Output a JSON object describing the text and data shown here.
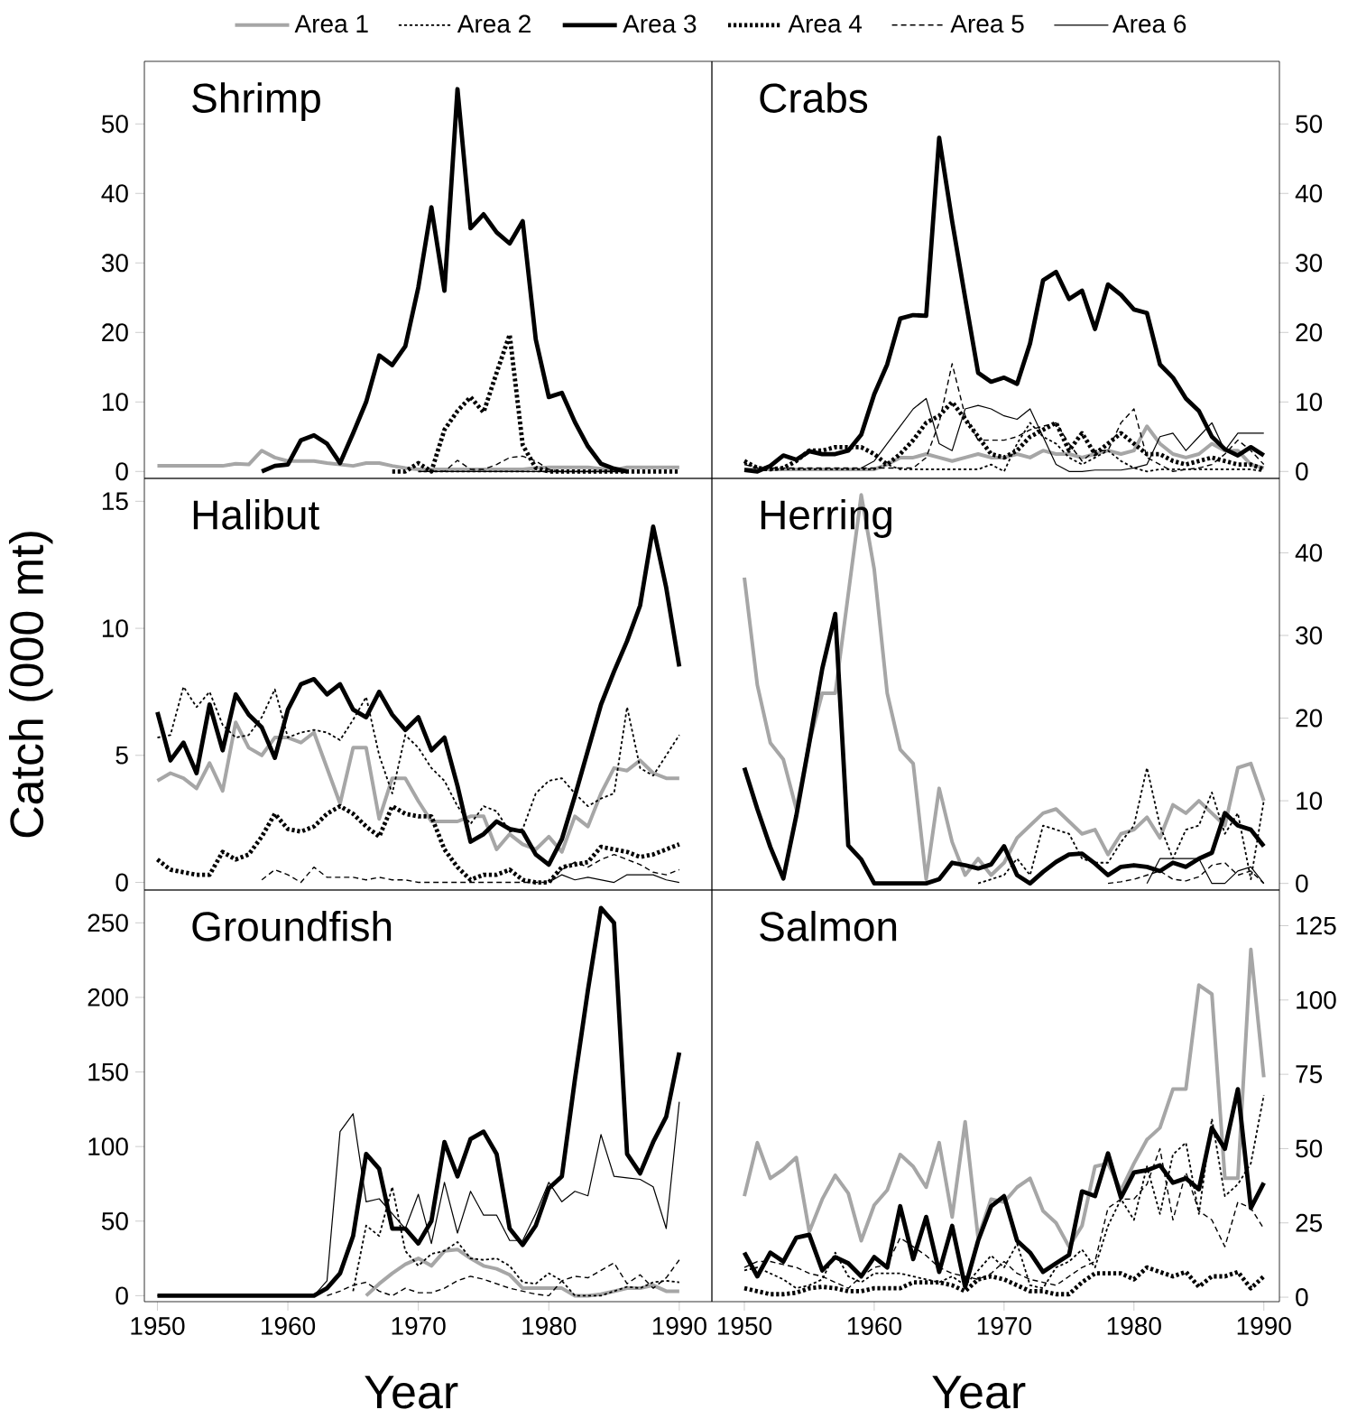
{
  "chart_data": [
    {
      "type": "line",
      "title": "Shrimp",
      "x": [
        1950,
        1951,
        1952,
        1953,
        1954,
        1955,
        1956,
        1957,
        1958,
        1959,
        1960,
        1961,
        1962,
        1963,
        1964,
        1965,
        1966,
        1967,
        1968,
        1969,
        1970,
        1971,
        1972,
        1973,
        1974,
        1975,
        1976,
        1977,
        1978,
        1979,
        1980,
        1981,
        1982,
        1983,
        1984,
        1985,
        1986,
        1987,
        1988,
        1989,
        1990
      ],
      "xlim": [
        1949,
        1992.5
      ],
      "ylim": [
        -1,
        59
      ],
      "yticks": [
        0,
        10,
        20,
        30,
        40,
        50
      ],
      "tick_labels": "y",
      "legend": "top",
      "series": [
        {
          "name": "Area 1",
          "color": "#a6a6a6",
          "line_style": "solid",
          "values": [
            0.8,
            0.8,
            0.8,
            0.8,
            0.8,
            0.8,
            1.1,
            1,
            3,
            2,
            1.5,
            1.5,
            1.5,
            1.2,
            1,
            0.8,
            1.2,
            1.2,
            0.8,
            0.5,
            0.3,
            0.3,
            0.3,
            0.3,
            0.3,
            0.3,
            0.3,
            0.3,
            0.3,
            0.5,
            0.6,
            0.6,
            0.6,
            0.6,
            0.4,
            0.2,
            0.6,
            0.6,
            0.6,
            0.6,
            0.6
          ]
        },
        {
          "name": "Area 2",
          "color": "#000000",
          "line_style": "dotted",
          "values": [
            null,
            null,
            null,
            null,
            null,
            null,
            null,
            null,
            null,
            null,
            null,
            null,
            null,
            null,
            null,
            null,
            null,
            null,
            null,
            null,
            0,
            0,
            0,
            0,
            0,
            0,
            0,
            0,
            0,
            0,
            0,
            0,
            0,
            0,
            0,
            0,
            0,
            null,
            null,
            null,
            null
          ]
        },
        {
          "name": "Area 3",
          "color": "#000000",
          "line_style": "solid",
          "values": [
            null,
            null,
            null,
            null,
            null,
            null,
            null,
            null,
            0,
            0.8,
            1,
            4.5,
            5.2,
            4,
            1.2,
            5.5,
            10,
            16.7,
            15.3,
            18,
            26.5,
            38,
            26,
            55,
            35,
            37,
            34.4,
            32.8,
            36,
            19,
            10.7,
            11.3,
            7.1,
            3.6,
            1.1,
            0.4,
            0,
            null,
            null,
            null,
            null
          ]
        },
        {
          "name": "Area 4",
          "color": "#000000",
          "line_style": "dotted",
          "values": [
            null,
            null,
            null,
            null,
            null,
            null,
            null,
            null,
            null,
            null,
            null,
            null,
            null,
            null,
            null,
            null,
            null,
            null,
            0,
            0,
            1.2,
            0,
            6,
            8.7,
            10.7,
            8.5,
            14.2,
            19.7,
            3.8,
            0.5,
            0,
            0,
            0,
            0,
            0,
            0,
            0,
            0,
            0,
            0,
            0
          ]
        },
        {
          "name": "Area 5",
          "color": "#000000",
          "line_style": "dashed",
          "values": [
            null,
            null,
            null,
            null,
            null,
            null,
            null,
            null,
            null,
            null,
            null,
            null,
            null,
            null,
            null,
            null,
            null,
            null,
            null,
            null,
            null,
            0,
            0,
            1.6,
            0.3,
            0.3,
            1,
            2,
            2.2,
            1.5,
            0.3,
            0,
            null,
            null,
            null,
            null,
            null,
            null,
            null,
            null,
            null
          ]
        },
        {
          "name": "Area 6",
          "color": "#000000",
          "line_style": "solid",
          "values": [
            null,
            null,
            null,
            null,
            null,
            null,
            null,
            null,
            null,
            null,
            null,
            null,
            null,
            null,
            null,
            null,
            null,
            null,
            null,
            null,
            0,
            0,
            0,
            0,
            0,
            0,
            0,
            0,
            0,
            0,
            0,
            0,
            0,
            0,
            0,
            0,
            0,
            null,
            null,
            null,
            null
          ]
        }
      ]
    },
    {
      "type": "line",
      "title": "Crabs",
      "x": [
        1950,
        1951,
        1952,
        1953,
        1954,
        1955,
        1956,
        1957,
        1958,
        1959,
        1960,
        1961,
        1962,
        1963,
        1964,
        1965,
        1966,
        1967,
        1968,
        1969,
        1970,
        1971,
        1972,
        1973,
        1974,
        1975,
        1976,
        1977,
        1978,
        1979,
        1980,
        1981,
        1982,
        1983,
        1984,
        1985,
        1986,
        1987,
        1988,
        1989,
        1990
      ],
      "xlim": [
        1947.5,
        1991.2
      ],
      "ylim": [
        -1,
        59
      ],
      "yticks": [
        0,
        10,
        20,
        30,
        40,
        50
      ],
      "tick_labels": "y",
      "series": [
        {
          "color": "#a6a6a6",
          "line_style": "solid",
          "values": [
            0.3,
            0.3,
            0.3,
            0.3,
            0.3,
            0.3,
            0.3,
            0.3,
            0.3,
            0.3,
            0.3,
            1,
            2,
            2,
            2.5,
            2,
            1.5,
            2,
            2.5,
            2,
            2,
            2.5,
            2,
            3,
            2.5,
            2.5,
            2,
            2.5,
            3,
            2.5,
            3,
            6.5,
            4,
            2.5,
            2,
            2.5,
            4,
            3,
            3,
            1,
            0.5
          ]
        },
        {
          "color": "#000000",
          "line_style": "dotted",
          "values": [
            1.2,
            0.5,
            0.3,
            0.3,
            0.3,
            0.3,
            0.3,
            0.3,
            0.3,
            0.3,
            0.3,
            1,
            0.3,
            0.3,
            0.3,
            0.3,
            0.3,
            0.3,
            0.3,
            1,
            0,
            4,
            7,
            5,
            4,
            2,
            1,
            2,
            3,
            1.5,
            0.5,
            0,
            0.3,
            0.3,
            0.3,
            0.3,
            0.3,
            0.3,
            0.3,
            0.3,
            0
          ]
        },
        {
          "color": "#000000",
          "line_style": "solid",
          "values": [
            0.2,
            0,
            0.8,
            2.3,
            1.7,
            2.9,
            2.5,
            2.5,
            3,
            5.3,
            11.1,
            15.4,
            22,
            22.5,
            22.4,
            48,
            36,
            25,
            14.2,
            12.9,
            13.5,
            12.6,
            18.4,
            27.5,
            28.7,
            24.8,
            26,
            20.5,
            26.9,
            25.4,
            23.3,
            22.8,
            15.4,
            13.5,
            10.5,
            8.7,
            5,
            3.2,
            2.3,
            3.5,
            2.3
          ]
        },
        {
          "color": "#000000",
          "line_style": "dotted",
          "values": [
            1.5,
            0.5,
            0.3,
            0.5,
            1.5,
            3,
            3,
            3.5,
            3.5,
            3.5,
            2.5,
            1,
            2.5,
            4.5,
            7,
            8,
            10,
            7.5,
            5,
            2.5,
            2,
            3,
            5,
            6,
            7,
            3,
            5.5,
            2.5,
            4,
            5.5,
            4,
            2.5,
            2.5,
            1.5,
            1,
            1.5,
            2,
            1.5,
            1,
            1,
            0.3
          ]
        },
        {
          "color": "#000000",
          "line_style": "dashed",
          "values": [
            1,
            0.5,
            0.5,
            0.5,
            0.5,
            0.5,
            0.5,
            0.5,
            0.5,
            0.5,
            0.5,
            0.5,
            0.5,
            0.5,
            2,
            7,
            15.5,
            8,
            4.5,
            4.5,
            4.5,
            5,
            6,
            6.5,
            7,
            4,
            1.5,
            3,
            3,
            7,
            9,
            2,
            1,
            0,
            0.3,
            0.5,
            1,
            2.5,
            4.5,
            3,
            1
          ]
        },
        {
          "color": "#000000",
          "line_style": "solid",
          "values": [
            null,
            null,
            null,
            null,
            null,
            null,
            null,
            null,
            null,
            0.5,
            1.5,
            4,
            6.5,
            9,
            10.5,
            4,
            3,
            9,
            9.5,
            9,
            8,
            7.5,
            9,
            5,
            1,
            0,
            0,
            0.2,
            0.2,
            0.2,
            0.5,
            1,
            5,
            5.5,
            3,
            5,
            7,
            3,
            5.5,
            5.5,
            5.5
          ]
        }
      ]
    },
    {
      "type": "line",
      "title": "Halibut",
      "ylabel": "Catch (000 mt)",
      "x": [
        1950,
        1951,
        1952,
        1953,
        1954,
        1955,
        1956,
        1957,
        1958,
        1959,
        1960,
        1961,
        1962,
        1963,
        1964,
        1965,
        1966,
        1967,
        1968,
        1969,
        1970,
        1971,
        1972,
        1973,
        1974,
        1975,
        1976,
        1977,
        1978,
        1979,
        1980,
        1981,
        1982,
        1983,
        1984,
        1985,
        1986,
        1987,
        1988,
        1989,
        1990
      ],
      "xlim": [
        1949,
        1992.5
      ],
      "ylim": [
        -0.3,
        15.9
      ],
      "yticks": [
        0,
        5,
        10,
        15
      ],
      "tick_labels": "y",
      "series": [
        {
          "color": "#a6a6a6",
          "line_style": "solid",
          "values": [
            4,
            4.3,
            4.1,
            3.7,
            4.7,
            3.6,
            6.3,
            5.3,
            5,
            5.7,
            5.7,
            5.5,
            5.9,
            4.5,
            3.1,
            5.3,
            5.3,
            2.5,
            4.1,
            4.1,
            3.2,
            2.4,
            2.4,
            2.4,
            2.6,
            2.6,
            1.3,
            1.9,
            1.5,
            1.3,
            1.8,
            1.2,
            2.6,
            2.2,
            3.5,
            4.5,
            4.4,
            4.8,
            4.3,
            4.1,
            4.1
          ]
        },
        {
          "color": "#000000",
          "line_style": "dotted",
          "values": [
            5.7,
            5.8,
            7.7,
            6.9,
            7.5,
            6.2,
            5.7,
            5.8,
            6.5,
            7.6,
            5.7,
            5.9,
            6,
            5.9,
            5.6,
            6.4,
            7.3,
            5,
            3.5,
            5.8,
            5.3,
            4.5,
            4,
            3,
            2.3,
            3,
            2.8,
            2,
            2.1,
            3.5,
            4,
            4.1,
            3.5,
            3,
            3.3,
            3.5,
            6.9,
            4.5,
            4.2,
            5,
            5.8
          ]
        },
        {
          "color": "#000000",
          "line_style": "solid",
          "values": [
            6.7,
            4.8,
            5.5,
            4.3,
            7,
            5.2,
            7.4,
            6.6,
            6.1,
            4.9,
            6.8,
            7.8,
            8,
            7.4,
            7.8,
            6.8,
            6.5,
            7.5,
            6.6,
            6,
            6.5,
            5.2,
            5.7,
            3.8,
            1.6,
            1.9,
            2.4,
            2.1,
            2,
            1.1,
            0.7,
            1.7,
            3.4,
            5.2,
            7,
            8.3,
            9.5,
            10.9,
            14,
            11.6,
            8.5
          ]
        },
        {
          "color": "#000000",
          "line_style": "dotted",
          "values": [
            0.9,
            0.5,
            0.4,
            0.3,
            0.3,
            1.2,
            0.9,
            1.1,
            1.8,
            2.7,
            2.1,
            2,
            2.2,
            2.7,
            3,
            2.7,
            2.2,
            1.8,
            3,
            2.7,
            2.6,
            2.6,
            1.3,
            0.6,
            0.1,
            0.3,
            0.3,
            0.5,
            0.1,
            0,
            0,
            0.6,
            0.7,
            0.8,
            1.4,
            1.3,
            1.2,
            1,
            1.1,
            1.3,
            1.5
          ]
        },
        {
          "color": "#000000",
          "line_style": "dashed",
          "values": [
            null,
            null,
            null,
            null,
            null,
            null,
            null,
            null,
            0.1,
            0.5,
            0.3,
            0,
            0.6,
            0.2,
            0.2,
            0.2,
            0.1,
            0.2,
            0.1,
            0.1,
            0,
            0,
            0,
            0,
            0,
            0,
            0,
            0,
            0,
            0,
            0,
            0.5,
            0.8,
            0.6,
            0.9,
            1.1,
            0.9,
            0.7,
            0.4,
            0.3,
            0.5
          ]
        },
        {
          "color": "#000000",
          "line_style": "solid",
          "values": [
            null,
            null,
            null,
            null,
            null,
            null,
            null,
            null,
            null,
            null,
            null,
            null,
            null,
            null,
            null,
            null,
            null,
            null,
            null,
            null,
            null,
            null,
            null,
            null,
            null,
            null,
            null,
            null,
            null,
            null,
            0,
            0.3,
            0.1,
            0.2,
            0.1,
            0,
            0.3,
            0.3,
            0.3,
            0.1,
            0
          ]
        }
      ]
    },
    {
      "type": "line",
      "title": "Herring",
      "x": [
        1950,
        1951,
        1952,
        1953,
        1954,
        1955,
        1956,
        1957,
        1958,
        1959,
        1960,
        1961,
        1962,
        1963,
        1964,
        1965,
        1966,
        1967,
        1968,
        1969,
        1970,
        1971,
        1972,
        1973,
        1974,
        1975,
        1976,
        1977,
        1978,
        1979,
        1980,
        1981,
        1982,
        1983,
        1984,
        1985,
        1986,
        1987,
        1988,
        1989,
        1990
      ],
      "xlim": [
        1947.5,
        1991.2
      ],
      "ylim": [
        -0.8,
        49
      ],
      "yticks": [
        0,
        10,
        20,
        30,
        40
      ],
      "tick_labels": "y",
      "series": [
        {
          "color": "#a6a6a6",
          "line_style": "solid",
          "values": [
            37,
            24,
            17,
            15,
            9,
            17,
            23,
            23,
            35,
            47,
            38,
            23,
            16.2,
            14.5,
            0.5,
            11.5,
            5,
            1,
            3,
            1,
            2.5,
            5.5,
            7,
            8.5,
            9,
            7.5,
            6,
            6.5,
            3.5,
            6,
            6.5,
            8,
            5.5,
            9.5,
            8.5,
            10,
            8.5,
            7,
            14,
            14.5,
            10
          ]
        },
        {
          "color": "#000000",
          "line_style": "dotted",
          "values": [
            null,
            null,
            null,
            null,
            null,
            null,
            null,
            null,
            null,
            null,
            null,
            null,
            null,
            null,
            null,
            null,
            null,
            null,
            0,
            0.5,
            1,
            3,
            1,
            7,
            6.5,
            6,
            3,
            2.5,
            2.5,
            5,
            7,
            14,
            7,
            3,
            6.5,
            7,
            11,
            6,
            8.5,
            0.5,
            10
          ]
        },
        {
          "color": "#000000",
          "line_style": "solid",
          "values": [
            14,
            9,
            4.4,
            0.6,
            8.2,
            17,
            26,
            32.6,
            4.6,
            2.9,
            0,
            0,
            0,
            0,
            0,
            0.5,
            2.5,
            2.2,
            1.8,
            2.3,
            4.5,
            1,
            0,
            1.4,
            2.6,
            3.5,
            3.6,
            2.4,
            1,
            2,
            2.2,
            2,
            1.5,
            2.5,
            2,
            3,
            3.7,
            8.5,
            7,
            6.5,
            4.5
          ]
        },
        {
          "color": "#000000",
          "line_style": "dashed",
          "values": [
            null,
            null,
            null,
            null,
            null,
            null,
            null,
            null,
            null,
            null,
            null,
            null,
            null,
            null,
            null,
            null,
            null,
            null,
            null,
            null,
            null,
            null,
            null,
            null,
            null,
            null,
            null,
            null,
            0,
            0.2,
            0.5,
            1,
            1.5,
            0.5,
            0.3,
            0.8,
            2.2,
            2.5,
            1,
            1.5,
            0
          ]
        },
        {
          "color": "#000000",
          "line_style": "solid",
          "values": [
            null,
            null,
            null,
            null,
            null,
            null,
            null,
            null,
            null,
            null,
            null,
            null,
            null,
            null,
            null,
            null,
            null,
            null,
            null,
            null,
            null,
            null,
            null,
            null,
            null,
            null,
            null,
            null,
            null,
            null,
            null,
            0,
            3,
            3,
            3,
            3,
            0,
            0,
            1.5,
            2,
            0
          ]
        }
      ]
    },
    {
      "type": "line",
      "title": "Groundfish",
      "xlabel": "Year",
      "x": [
        1950,
        1951,
        1952,
        1953,
        1954,
        1955,
        1956,
        1957,
        1958,
        1959,
        1960,
        1961,
        1962,
        1963,
        1964,
        1965,
        1966,
        1967,
        1968,
        1969,
        1970,
        1971,
        1972,
        1973,
        1974,
        1975,
        1976,
        1977,
        1978,
        1979,
        1980,
        1981,
        1982,
        1983,
        1984,
        1985,
        1986,
        1987,
        1988,
        1989,
        1990
      ],
      "xlim": [
        1949,
        1992.5
      ],
      "xticks": [
        1950,
        1960,
        1970,
        1980,
        1990
      ],
      "ylim": [
        -4,
        272
      ],
      "yticks": [
        0,
        50,
        100,
        150,
        200,
        250
      ],
      "series": [
        {
          "color": "#a6a6a6",
          "line_style": "solid",
          "values": [
            null,
            null,
            null,
            null,
            null,
            null,
            null,
            null,
            null,
            null,
            null,
            null,
            null,
            null,
            null,
            null,
            0,
            8,
            15,
            21,
            25,
            20,
            30,
            31,
            25,
            20,
            18,
            14,
            5,
            5,
            5,
            5,
            0,
            0,
            1,
            3,
            5,
            5,
            7,
            3,
            3
          ]
        },
        {
          "color": "#000000",
          "line_style": "dotted",
          "values": [
            null,
            null,
            null,
            null,
            null,
            null,
            null,
            null,
            null,
            null,
            null,
            null,
            null,
            null,
            null,
            3,
            47,
            40,
            73,
            30,
            20,
            28,
            30,
            36,
            25,
            24,
            25,
            20,
            9,
            8,
            15,
            10,
            0,
            0,
            0,
            3,
            6,
            5,
            9,
            10,
            9
          ]
        },
        {
          "color": "#000000",
          "line_style": "solid",
          "values": [
            0,
            0,
            0,
            0,
            0,
            0,
            0,
            0,
            0,
            0,
            0,
            0,
            0,
            5,
            15,
            40,
            95,
            85,
            45,
            45,
            35,
            50,
            103,
            80,
            105,
            110,
            95,
            45,
            34,
            47,
            72,
            80,
            145,
            205,
            260,
            250,
            95,
            82,
            103,
            120,
            163
          ]
        },
        {
          "color": "#000000",
          "line_style": "dashed",
          "values": [
            null,
            null,
            null,
            null,
            null,
            null,
            null,
            null,
            null,
            null,
            null,
            null,
            null,
            0,
            3,
            7,
            9,
            3,
            0,
            5,
            2,
            2,
            5,
            10,
            13,
            11,
            8,
            5,
            3,
            1,
            0,
            10,
            13,
            12,
            17,
            22,
            8,
            14,
            5,
            12,
            24
          ]
        },
        {
          "color": "#000000",
          "line_style": "solid",
          "values": [
            0,
            0,
            0,
            0,
            0,
            0,
            0,
            0,
            0,
            0,
            0,
            0,
            0,
            10,
            110,
            122,
            63,
            65,
            55,
            45,
            68,
            35,
            76,
            42,
            70,
            54,
            54,
            37,
            37,
            55,
            76,
            63,
            70,
            67,
            108,
            80,
            79,
            78,
            73,
            45,
            130
          ]
        }
      ]
    },
    {
      "type": "line",
      "title": "Salmon",
      "xlabel": "Year",
      "x": [
        1950,
        1951,
        1952,
        1953,
        1954,
        1955,
        1956,
        1957,
        1958,
        1959,
        1960,
        1961,
        1962,
        1963,
        1964,
        1965,
        1966,
        1967,
        1968,
        1969,
        1970,
        1971,
        1972,
        1973,
        1974,
        1975,
        1976,
        1977,
        1978,
        1979,
        1980,
        1981,
        1982,
        1983,
        1984,
        1985,
        1986,
        1987,
        1988,
        1989,
        1990
      ],
      "xlim": [
        1947.5,
        1991.2
      ],
      "xticks": [
        1950,
        1960,
        1970,
        1980,
        1990
      ],
      "ylim": [
        -1.5,
        137
      ],
      "yticks": [
        0,
        25,
        50,
        75,
        100,
        125
      ],
      "series": [
        {
          "color": "#a6a6a6",
          "line_style": "solid",
          "values": [
            34,
            52,
            40,
            43,
            47,
            22,
            33,
            41,
            35,
            19,
            31,
            36,
            48,
            44,
            37,
            52,
            27,
            59,
            20,
            33,
            32,
            37,
            40,
            29,
            25,
            17,
            24,
            44,
            45,
            36,
            45,
            53,
            57,
            70,
            70,
            105,
            102,
            40,
            40,
            117,
            74
          ]
        },
        {
          "color": "#000000",
          "line_style": "dotted",
          "values": [
            9,
            10,
            8,
            6,
            3,
            4,
            6,
            15,
            7,
            5,
            8,
            8,
            8,
            7,
            6,
            5,
            7,
            4,
            9,
            14,
            10,
            18,
            4,
            3,
            10,
            12,
            16,
            10,
            24,
            33,
            26,
            44,
            28,
            48,
            52,
            28,
            60,
            34,
            38,
            45,
            68
          ]
        },
        {
          "color": "#000000",
          "line_style": "solid",
          "values": [
            15,
            7,
            15,
            12,
            20,
            21,
            9,
            13.5,
            11.4,
            7,
            13.5,
            10,
            30.6,
            12.8,
            27,
            8.5,
            24,
            3.5,
            19,
            30.6,
            34,
            19,
            15,
            8.5,
            11.4,
            14.2,
            35.6,
            34,
            48.4,
            33.5,
            42,
            42.7,
            44.4,
            38.5,
            40,
            36.3,
            57,
            49.9,
            70,
            30,
            38.5
          ]
        },
        {
          "color": "#000000",
          "line_style": "dotted",
          "values": [
            3,
            2,
            1,
            1,
            1.5,
            3,
            3.5,
            3,
            2,
            2,
            3,
            3,
            3,
            5,
            5,
            5,
            4,
            2,
            6,
            7,
            6,
            4,
            2,
            2,
            1,
            1,
            5,
            8,
            8,
            8,
            6,
            10,
            8.5,
            7,
            8.5,
            3.5,
            7,
            7,
            8.5,
            3,
            7
          ]
        },
        {
          "color": "#000000",
          "line_style": "dashed",
          "values": [
            10,
            12,
            12,
            11,
            10,
            8,
            7,
            5,
            3,
            7,
            10,
            11,
            20,
            17,
            14,
            10,
            8,
            7,
            6,
            8,
            12,
            8,
            6,
            5,
            4,
            7,
            10,
            12,
            30,
            33,
            33,
            38,
            50,
            26,
            42,
            29,
            26,
            17,
            32,
            30,
            23
          ]
        }
      ]
    }
  ]
}
